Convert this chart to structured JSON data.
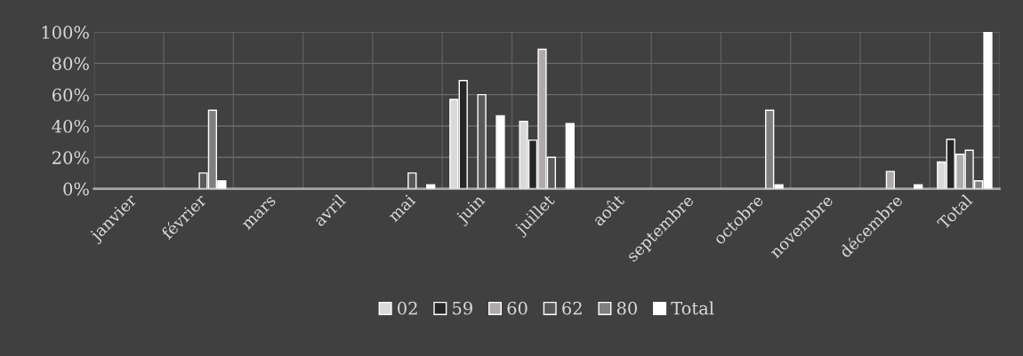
{
  "chart_data": {
    "type": "bar",
    "categories": [
      "janvier",
      "février",
      "mars",
      "avril",
      "mai",
      "juin",
      "juillet",
      "août",
      "septembre",
      "octobre",
      "novembre",
      "décembre",
      "Total"
    ],
    "series": [
      {
        "name": "02",
        "color": "#d9d9d9",
        "values": [
          null,
          null,
          null,
          null,
          null,
          57,
          43,
          null,
          null,
          null,
          null,
          null,
          17
        ]
      },
      {
        "name": "59",
        "color": "#262626",
        "values": [
          null,
          null,
          null,
          null,
          null,
          69,
          31,
          null,
          null,
          null,
          null,
          null,
          31.5
        ]
      },
      {
        "name": "60",
        "color": "#aeaaaa",
        "values": [
          null,
          null,
          null,
          null,
          null,
          null,
          89,
          null,
          null,
          null,
          null,
          11,
          22
        ]
      },
      {
        "name": "62",
        "color": "#595959",
        "values": [
          null,
          10,
          null,
          null,
          10,
          60,
          20,
          null,
          null,
          null,
          null,
          null,
          24.5
        ]
      },
      {
        "name": "80",
        "color": "#7f7f7f",
        "values": [
          null,
          50,
          null,
          null,
          null,
          null,
          null,
          null,
          null,
          50,
          null,
          null,
          5
        ]
      },
      {
        "name": "Total",
        "color": "#ffffff",
        "values": [
          null,
          5,
          null,
          null,
          2.5,
          46.5,
          41.5,
          null,
          null,
          2.5,
          null,
          2.5,
          100
        ]
      }
    ],
    "ylim": [
      0,
      100
    ],
    "yticks": [
      {
        "value": 0,
        "label": "0%"
      },
      {
        "value": 20,
        "label": "20%"
      },
      {
        "value": 40,
        "label": "40%"
      },
      {
        "value": 60,
        "label": "60%"
      },
      {
        "value": 80,
        "label": "80%"
      },
      {
        "value": 100,
        "label": "100%"
      }
    ],
    "grid": true,
    "legend": "bottom"
  }
}
